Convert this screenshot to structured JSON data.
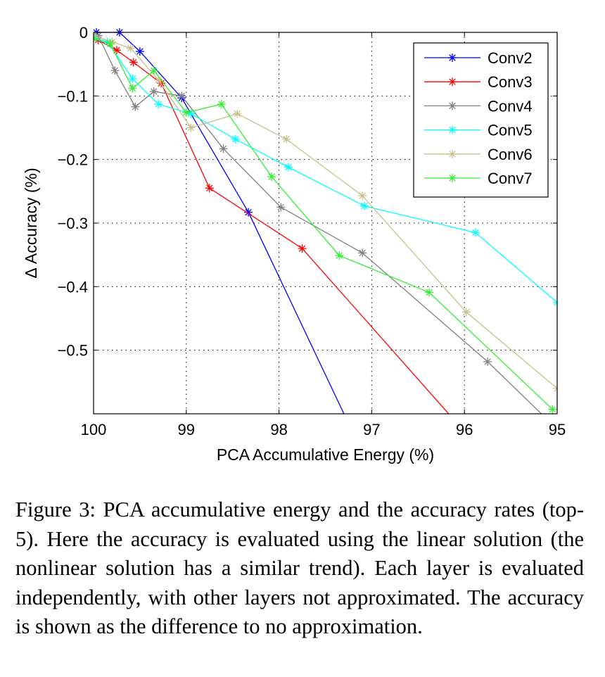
{
  "chart_data": {
    "type": "line",
    "xlabel": "PCA Accumulative Energy (%)",
    "ylabel": "Δ Accuracy (%)",
    "xlim": [
      100,
      95
    ],
    "ylim": [
      -0.6,
      0
    ],
    "x_reversed": true,
    "x_ticks": [
      100,
      99,
      98,
      97,
      96,
      95
    ],
    "x_tick_labels": [
      "100",
      "99",
      "98",
      "97",
      "96",
      "95"
    ],
    "y_ticks": [
      0,
      -0.1,
      -0.2,
      -0.3,
      -0.4,
      -0.5
    ],
    "y_tick_labels": [
      "0",
      "−0.1",
      "−0.2",
      "−0.3",
      "−0.4",
      "−0.5"
    ],
    "grid": true,
    "legend_position": "top-right",
    "marker": "asterisk",
    "series": [
      {
        "name": "Conv2",
        "color": "#0000ff",
        "points": [
          [
            99.97,
            0.0
          ],
          [
            99.72,
            0.0
          ],
          [
            99.5,
            -0.03
          ],
          [
            99.05,
            -0.103
          ],
          [
            98.33,
            -0.283
          ],
          [
            97.3,
            -0.6
          ]
        ]
      },
      {
        "name": "Conv3",
        "color": "#ff0000",
        "points": [
          [
            100.0,
            -0.005
          ],
          [
            99.95,
            -0.012
          ],
          [
            99.75,
            -0.028
          ],
          [
            99.57,
            -0.047
          ],
          [
            99.27,
            -0.08
          ],
          [
            98.75,
            -0.245
          ],
          [
            97.75,
            -0.34
          ],
          [
            96.17,
            -0.6
          ]
        ]
      },
      {
        "name": "Conv4",
        "color": "#808080",
        "points": [
          [
            100.0,
            -0.005
          ],
          [
            99.95,
            -0.005
          ],
          [
            99.77,
            -0.06
          ],
          [
            99.55,
            -0.117
          ],
          [
            99.35,
            -0.093
          ],
          [
            99.05,
            -0.1
          ],
          [
            98.6,
            -0.183
          ],
          [
            97.98,
            -0.275
          ],
          [
            97.1,
            -0.347
          ],
          [
            95.75,
            -0.518
          ],
          [
            95.17,
            -0.6
          ]
        ]
      },
      {
        "name": "Conv5",
        "color": "#00ffff",
        "points": [
          [
            100.0,
            -0.008
          ],
          [
            99.85,
            -0.015
          ],
          [
            99.58,
            -0.073
          ],
          [
            99.3,
            -0.113
          ],
          [
            98.95,
            -0.128
          ],
          [
            98.47,
            -0.168
          ],
          [
            97.9,
            -0.212
          ],
          [
            97.08,
            -0.273
          ],
          [
            95.88,
            -0.315
          ],
          [
            95.0,
            -0.425
          ]
        ]
      },
      {
        "name": "Conv6",
        "color": "#c8c08c",
        "points": [
          [
            100.0,
            -0.005
          ],
          [
            99.8,
            -0.015
          ],
          [
            99.6,
            -0.025
          ],
          [
            99.3,
            -0.075
          ],
          [
            98.95,
            -0.15
          ],
          [
            98.45,
            -0.128
          ],
          [
            97.92,
            -0.168
          ],
          [
            97.1,
            -0.257
          ],
          [
            95.98,
            -0.44
          ],
          [
            95.0,
            -0.56
          ]
        ]
      },
      {
        "name": "Conv7",
        "color": "#33ee33",
        "points": [
          [
            100.0,
            -0.01
          ],
          [
            99.82,
            -0.018
          ],
          [
            99.58,
            -0.088
          ],
          [
            99.35,
            -0.06
          ],
          [
            99.0,
            -0.126
          ],
          [
            98.62,
            -0.113
          ],
          [
            98.08,
            -0.227
          ],
          [
            97.35,
            -0.351
          ],
          [
            96.38,
            -0.409
          ],
          [
            95.05,
            -0.593
          ]
        ]
      }
    ]
  },
  "caption": "Figure 3: PCA accumulative energy and the accuracy rates (top-5). Here the accuracy is evaluated using the linear solution (the nonlinear solution has a similar trend). Each layer is evaluated independently, with other layers not approximated. The accuracy is shown as the difference to no approximation."
}
